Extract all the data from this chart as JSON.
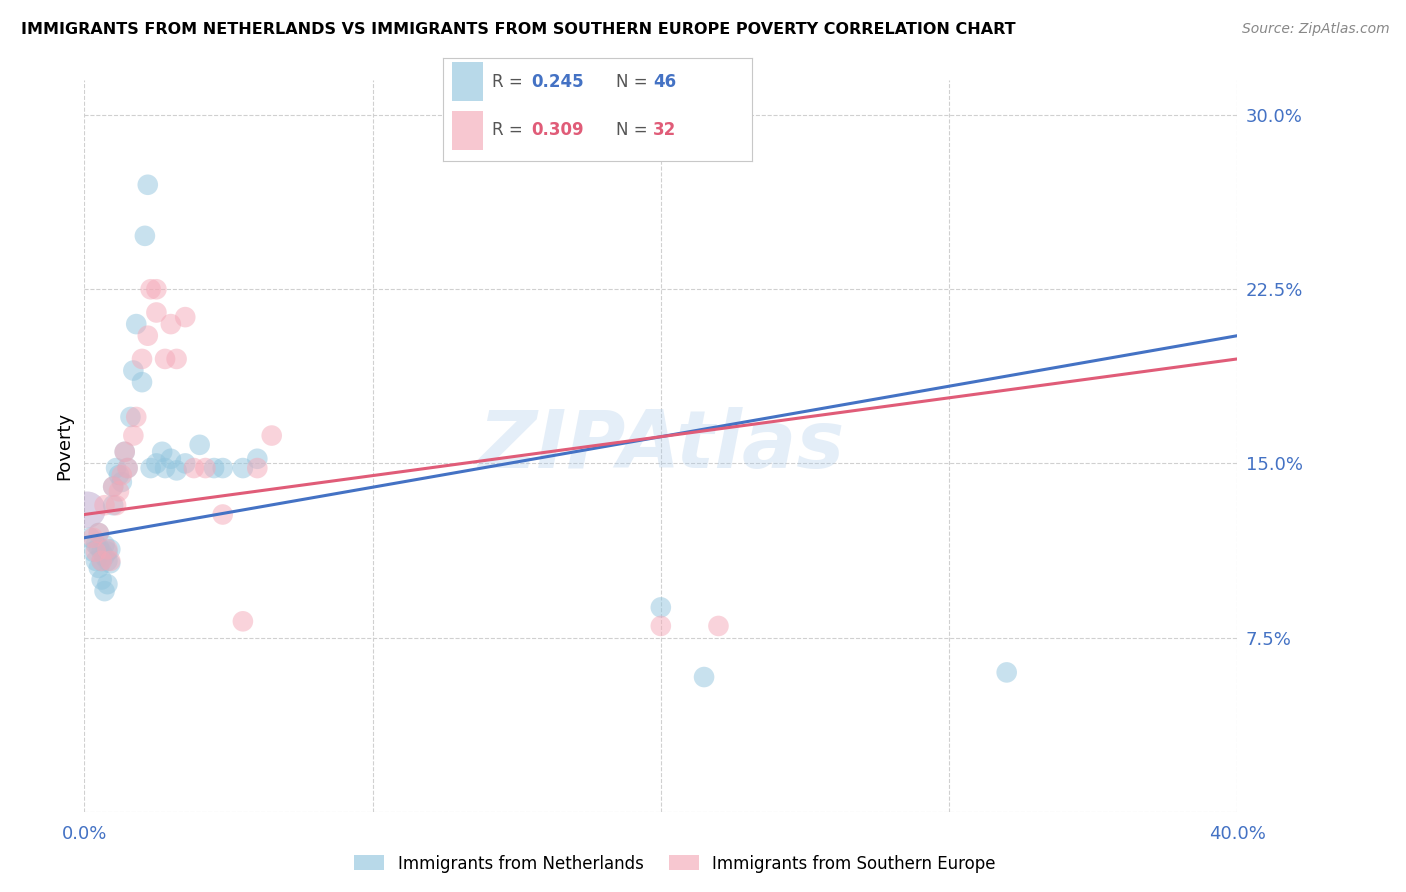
{
  "title": "IMMIGRANTS FROM NETHERLANDS VS IMMIGRANTS FROM SOUTHERN EUROPE POVERTY CORRELATION CHART",
  "source": "Source: ZipAtlas.com",
  "ylabel": "Poverty",
  "yticks": [
    0.0,
    0.075,
    0.15,
    0.225,
    0.3
  ],
  "ytick_labels": [
    "",
    "7.5%",
    "15.0%",
    "22.5%",
    "30.0%"
  ],
  "xlim": [
    0.0,
    0.4
  ],
  "ylim": [
    0.0,
    0.315
  ],
  "legend1_R": "0.245",
  "legend1_N": "46",
  "legend2_R": "0.309",
  "legend2_N": "32",
  "blue_color": "#92c5de",
  "pink_color": "#f4a9b8",
  "line_blue": "#4472C4",
  "line_pink": "#e05c78",
  "axis_color": "#4472C4",
  "pink_text_color": "#e05c78",
  "watermark": "ZIPAtlas",
  "netherlands_x": [
    0.002,
    0.003,
    0.004,
    0.004,
    0.005,
    0.005,
    0.005,
    0.006,
    0.006,
    0.006,
    0.007,
    0.007,
    0.007,
    0.008,
    0.008,
    0.008,
    0.009,
    0.009,
    0.01,
    0.01,
    0.011,
    0.012,
    0.013,
    0.014,
    0.015,
    0.016,
    0.017,
    0.018,
    0.02,
    0.021,
    0.022,
    0.023,
    0.025,
    0.027,
    0.028,
    0.03,
    0.032,
    0.035,
    0.04,
    0.045,
    0.048,
    0.055,
    0.06,
    0.2,
    0.215,
    0.32
  ],
  "netherlands_y": [
    0.118,
    0.112,
    0.115,
    0.108,
    0.12,
    0.114,
    0.105,
    0.112,
    0.108,
    0.1,
    0.115,
    0.11,
    0.095,
    0.112,
    0.108,
    0.098,
    0.113,
    0.107,
    0.14,
    0.132,
    0.148,
    0.145,
    0.142,
    0.155,
    0.148,
    0.17,
    0.19,
    0.21,
    0.185,
    0.248,
    0.27,
    0.148,
    0.15,
    0.155,
    0.148,
    0.152,
    0.147,
    0.15,
    0.158,
    0.148,
    0.148,
    0.148,
    0.152,
    0.088,
    0.058,
    0.06
  ],
  "southern_x": [
    0.003,
    0.004,
    0.005,
    0.006,
    0.007,
    0.008,
    0.009,
    0.01,
    0.011,
    0.012,
    0.013,
    0.014,
    0.015,
    0.017,
    0.018,
    0.02,
    0.022,
    0.025,
    0.028,
    0.03,
    0.032,
    0.035,
    0.038,
    0.042,
    0.048,
    0.055,
    0.065,
    0.2,
    0.22,
    0.023,
    0.025,
    0.06
  ],
  "southern_y": [
    0.118,
    0.112,
    0.12,
    0.108,
    0.132,
    0.113,
    0.108,
    0.14,
    0.132,
    0.138,
    0.145,
    0.155,
    0.148,
    0.162,
    0.17,
    0.195,
    0.205,
    0.215,
    0.195,
    0.21,
    0.195,
    0.213,
    0.148,
    0.148,
    0.128,
    0.082,
    0.162,
    0.08,
    0.08,
    0.225,
    0.225,
    0.148
  ]
}
